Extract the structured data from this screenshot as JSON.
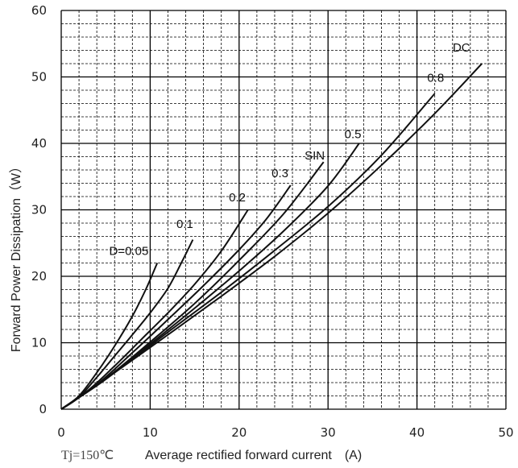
{
  "chart_data": {
    "type": "line",
    "title": "",
    "xlabel": "Average rectified forward current　(A)",
    "ylabel": "Forward Power Dissipation（W）",
    "condition": "Tj=150℃",
    "xlim": [
      0,
      50
    ],
    "ylim": [
      0,
      60
    ],
    "x_ticks": [
      0,
      10,
      20,
      30,
      40,
      50
    ],
    "y_ticks": [
      0,
      10,
      20,
      30,
      40,
      50,
      60
    ],
    "grid": true,
    "minor_grid": {
      "x_step": 2,
      "y_step": 2
    },
    "series": [
      {
        "name": "D=0.05",
        "x": [
          0,
          2,
          4,
          6,
          8,
          9.5,
          10.8
        ],
        "y": [
          0,
          2,
          5.5,
          9.5,
          14,
          18,
          22
        ],
        "label_at": [
          7.6,
          23.2
        ]
      },
      {
        "name": "0.1",
        "x": [
          0,
          2,
          4,
          6,
          8,
          10,
          12,
          13.5,
          14.8
        ],
        "y": [
          0,
          1.8,
          4.8,
          8,
          11.2,
          14.5,
          18.2,
          22,
          25.5
        ],
        "label_at": [
          13.9,
          27.3
        ]
      },
      {
        "name": "0.2",
        "x": [
          0,
          3,
          6,
          9,
          12,
          15,
          18,
          21
        ],
        "y": [
          0,
          2.8,
          6.5,
          10.5,
          14.5,
          18.8,
          23.8,
          30
        ],
        "label_at": [
          19.8,
          31.3
        ]
      },
      {
        "name": "0.3",
        "x": [
          0,
          4,
          8,
          12,
          16,
          20,
          23,
          25.8
        ],
        "y": [
          0,
          3.7,
          8.5,
          13.5,
          18.6,
          24,
          28.5,
          33.7
        ],
        "label_at": [
          24.6,
          34.9
        ]
      },
      {
        "name": "SIN",
        "x": [
          0,
          5,
          10,
          15,
          20,
          25,
          29.5
        ],
        "y": [
          0,
          4.6,
          10.1,
          15.9,
          22.4,
          29.4,
          37.2
        ],
        "label_at": [
          28.5,
          37.6
        ]
      },
      {
        "name": "0.5",
        "x": [
          0,
          5,
          10,
          15,
          20,
          25,
          30,
          33.5
        ],
        "y": [
          0,
          4.5,
          9.8,
          15.2,
          20.8,
          26.8,
          33.6,
          40
        ],
        "label_at": [
          32.8,
          40.8
        ]
      },
      {
        "name": "0.8",
        "x": [
          0,
          6,
          12,
          18,
          24,
          30,
          36,
          42
        ],
        "y": [
          0,
          5.5,
          11.6,
          17.6,
          23.9,
          30.5,
          38.2,
          47.5
        ],
        "label_at": [
          42.1,
          49.3
        ]
      },
      {
        "name": "DC",
        "x": [
          0,
          6,
          12,
          18,
          24,
          30,
          36,
          42,
          47.3
        ],
        "y": [
          0,
          5.5,
          11.2,
          17,
          23,
          29.5,
          36.7,
          44.5,
          52
        ],
        "label_at": [
          45,
          53.8
        ]
      }
    ]
  }
}
